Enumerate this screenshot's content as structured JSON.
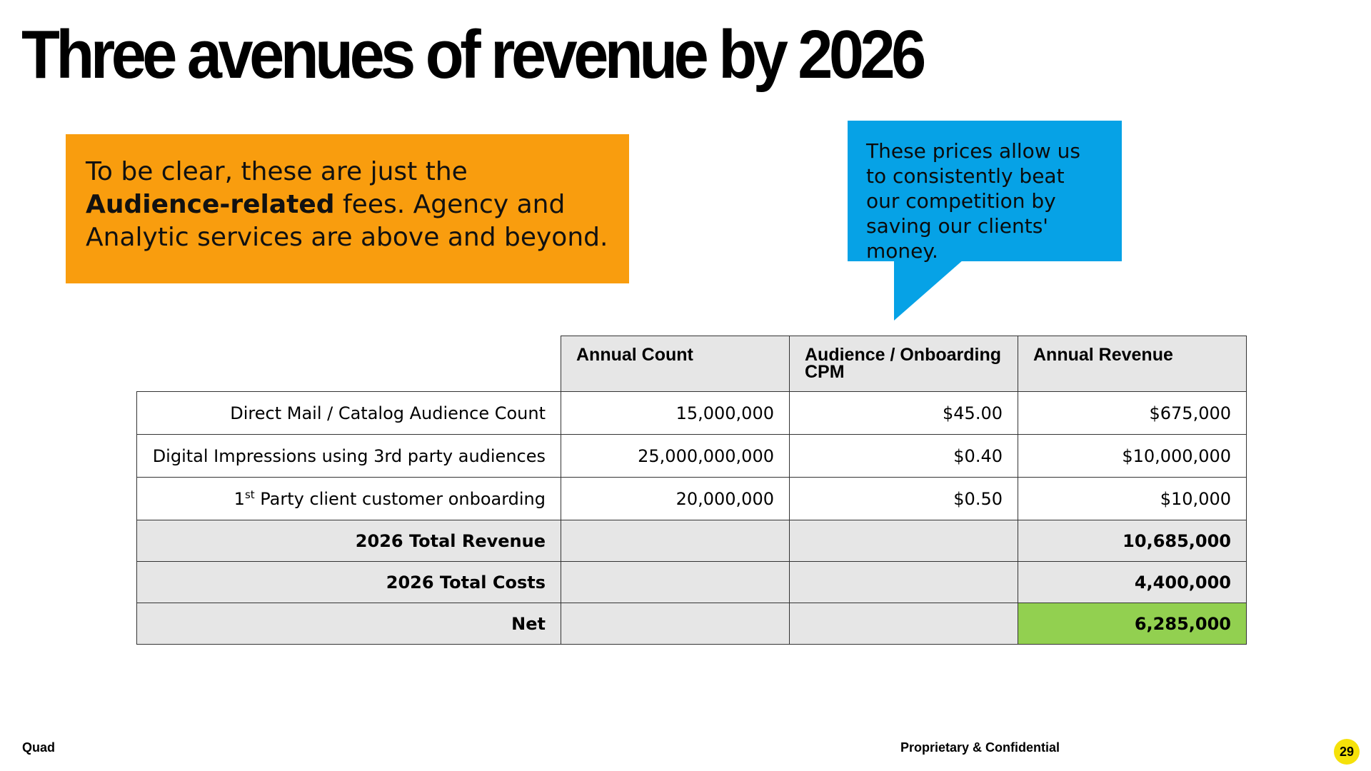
{
  "slide": {
    "title": "Three avenues of revenue by 2026",
    "page_number": "29"
  },
  "callout": {
    "text_before": "To be clear, these are just the ",
    "text_bold": "Audience-related",
    "text_after": " fees. Agency and Analytic services are above and beyond.",
    "color": "#f99d0e"
  },
  "bubble": {
    "text": "These prices allow us to consistently beat our competition by saving our clients' money.",
    "color": "#06a2e6"
  },
  "table": {
    "headers": [
      "Annual Count",
      "Audience / Onboarding CPM",
      "Annual Revenue"
    ],
    "rows": [
      {
        "label": "Direct Mail / Catalog Audience Count",
        "count": "15,000,000",
        "cpm": "$45.00",
        "revenue": "$675,000"
      },
      {
        "label": "Digital Impressions using 3rd party audiences",
        "count": "25,000,000,000",
        "cpm": "$0.40",
        "revenue": "$10,000,000"
      },
      {
        "label_prefix": "1",
        "label_sup": "st",
        "label_rest": " Party client customer onboarding",
        "count": "20,000,000",
        "cpm": "$0.50",
        "revenue": "$10,000"
      }
    ],
    "summary": [
      {
        "label": "2026 Total Revenue",
        "value": "10,685,000"
      },
      {
        "label": "2026 Total Costs",
        "value": "4,400,000"
      },
      {
        "label": "Net",
        "value": "6,285,000"
      }
    ],
    "net_color": "#92d050"
  },
  "footer": {
    "brand": "Quad",
    "confidential": "Proprietary & Confidential"
  }
}
